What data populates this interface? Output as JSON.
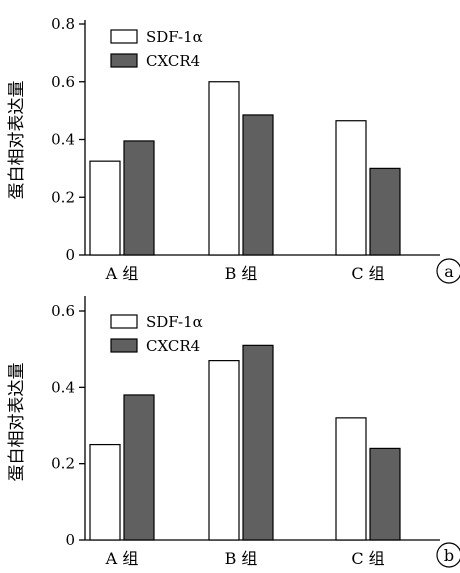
{
  "chart_data": [
    {
      "type": "bar",
      "panel_label": "a",
      "ylabel": "蛋白相对表达量",
      "xlabel": "",
      "categories": [
        "A 组",
        "B 组",
        "C 组"
      ],
      "ylim": [
        0,
        0.8
      ],
      "yticks": [
        0,
        0.2,
        0.4,
        0.6,
        0.8
      ],
      "ytick_labels": [
        "0",
        "0.2",
        "0.4",
        "0.6",
        "0.8"
      ],
      "legend_position": "top-left",
      "series": [
        {
          "name": "SDF-1α",
          "color": "#ffffff",
          "values": [
            0.325,
            0.6,
            0.465
          ]
        },
        {
          "name": "CXCR4",
          "color": "#606060",
          "values": [
            0.395,
            0.485,
            0.3
          ]
        }
      ]
    },
    {
      "type": "bar",
      "panel_label": "b",
      "ylabel": "蛋白相对表达量",
      "xlabel": "",
      "categories": [
        "A 组",
        "B 组",
        "C 组"
      ],
      "ylim": [
        0,
        0.6
      ],
      "yticks": [
        0,
        0.2,
        0.4,
        0.6
      ],
      "ytick_labels": [
        "0",
        "0.2",
        "0.4",
        "0.6"
      ],
      "legend_position": "top-left",
      "series": [
        {
          "name": "SDF-1α",
          "color": "#ffffff",
          "values": [
            0.25,
            0.47,
            0.32
          ]
        },
        {
          "name": "CXCR4",
          "color": "#606060",
          "values": [
            0.38,
            0.51,
            0.24
          ]
        }
      ]
    }
  ]
}
